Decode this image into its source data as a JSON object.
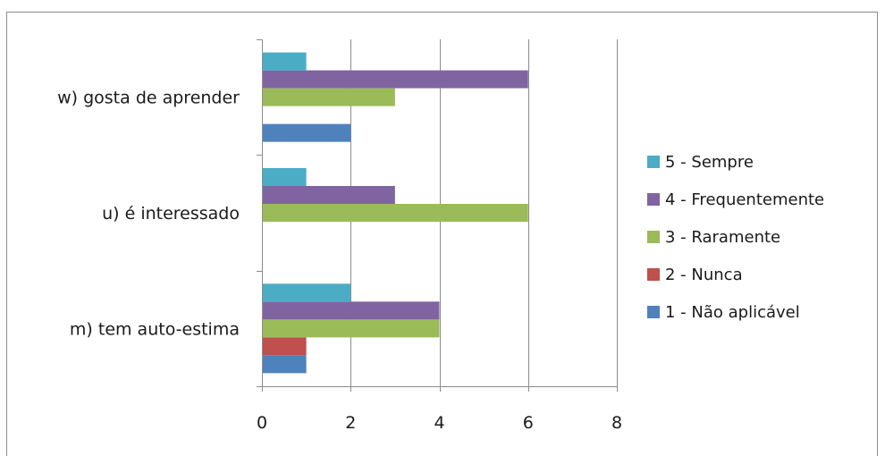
{
  "chart_data": {
    "type": "bar",
    "orientation": "horizontal",
    "title": "",
    "xlabel": "",
    "ylabel": "",
    "xlim": [
      0,
      8
    ],
    "x_ticks": [
      0,
      2,
      4,
      6,
      8
    ],
    "grid": "vertical major gridlines",
    "legend_position": "right",
    "categories": [
      "m) tem auto-estima",
      "u) é interessado",
      "w) gosta de aprender"
    ],
    "series": [
      {
        "name": "1 - Não aplicável",
        "color": "#4f81bd",
        "values": [
          1,
          0,
          2
        ]
      },
      {
        "name": "2 - Nunca",
        "color": "#c0504d",
        "values": [
          1,
          0,
          0
        ]
      },
      {
        "name": "3 - Raramente",
        "color": "#9bbb59",
        "values": [
          4,
          6,
          3
        ]
      },
      {
        "name": "4 - Frequentemente",
        "color": "#8064a2",
        "values": [
          4,
          3,
          6
        ]
      },
      {
        "name": "5 - Sempre",
        "color": "#4bacc6",
        "values": [
          2,
          1,
          1
        ]
      }
    ]
  }
}
